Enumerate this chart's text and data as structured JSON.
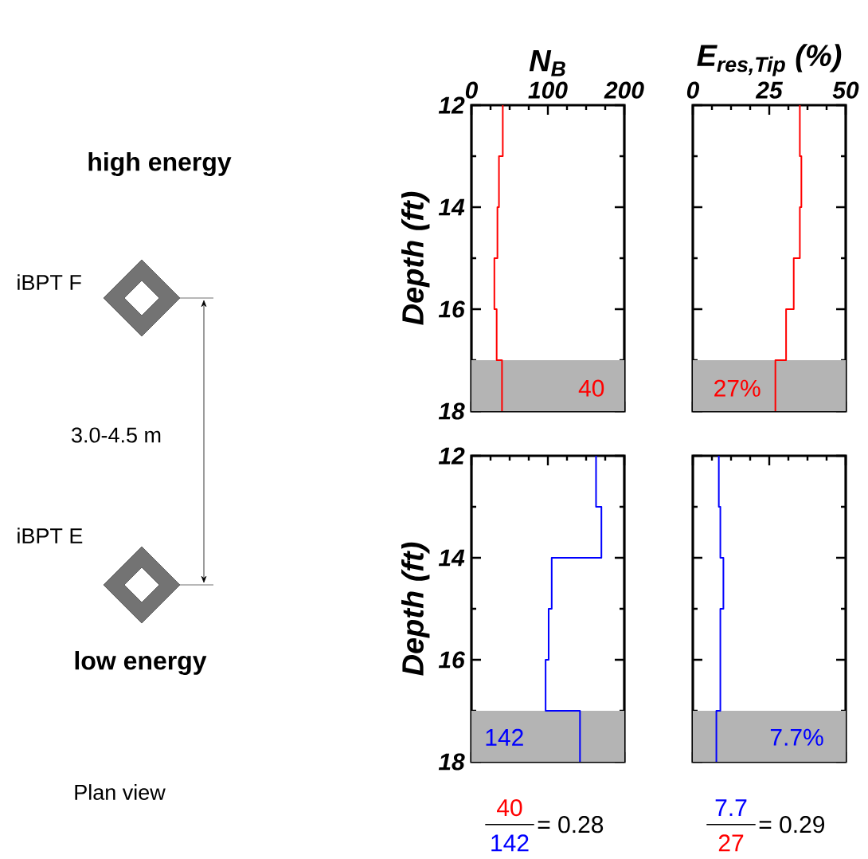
{
  "chart_data": [
    {
      "type": "other",
      "annotations": [
        "high energy",
        "iBPT  F",
        "3.0-4.5 m",
        "iBPT  E",
        "low energy",
        "Plan view"
      ]
    },
    {
      "type": "line",
      "xlabel": "N$_{B}$",
      "ylabel": "Depth (ft)",
      "xlim": [
        0,
        200
      ],
      "xticks": [
        0,
        100,
        200
      ],
      "ylim": [
        18,
        12
      ],
      "yticks": [
        12,
        14,
        16,
        18
      ],
      "series": [
        {
          "color": "#ff0000",
          "x": [
            41,
            41,
            36,
            36,
            34,
            34,
            30,
            30,
            33,
            33,
            40,
            40
          ],
          "values": [
            12,
            13,
            13,
            14,
            14,
            15,
            15,
            16,
            16,
            17,
            17,
            18
          ]
        }
      ],
      "bands": [
        {
          "axis": "y",
          "from": 17,
          "to": 18,
          "color": "#b4b4b4"
        }
      ],
      "annotations": [
        "40"
      ]
    },
    {
      "type": "line",
      "xlabel": "E$_{res,Tip}$ (%)",
      "xlim": [
        0,
        50
      ],
      "xticks": [
        0,
        25,
        50
      ],
      "ylim": [
        18,
        12
      ],
      "yticks": [
        12,
        14,
        16,
        18
      ],
      "tick_labels": "x",
      "series": [
        {
          "color": "#ff0000",
          "x": [
            35,
            35,
            35.5,
            35.5,
            35,
            35,
            33,
            33,
            30.5,
            30.5,
            27,
            27
          ],
          "values": [
            12,
            13,
            13,
            14,
            14,
            15,
            15,
            16,
            16,
            17,
            17,
            18
          ]
        }
      ],
      "bands": [
        {
          "axis": "y",
          "from": 17,
          "to": 18,
          "color": "#b4b4b4"
        }
      ],
      "annotations": [
        "27%"
      ]
    },
    {
      "type": "line",
      "ylabel": "Depth (ft)",
      "xlim": [
        0,
        200
      ],
      "xticks": [
        0,
        100,
        200
      ],
      "ylim": [
        18,
        12
      ],
      "yticks": [
        12,
        14,
        16,
        18
      ],
      "tick_labels": "y",
      "series": [
        {
          "color": "#0000ff",
          "x": [
            163,
            163,
            170,
            170,
            105,
            105,
            101,
            101,
            97,
            97,
            142,
            142
          ],
          "values": [
            12,
            13,
            13,
            14,
            14,
            15,
            15,
            16,
            16,
            17,
            17,
            18
          ]
        }
      ],
      "bands": [
        {
          "axis": "y",
          "from": 17,
          "to": 18,
          "color": "#b4b4b4"
        }
      ],
      "annotations": [
        "142",
        "40",
        "142",
        "= 0.28"
      ]
    },
    {
      "type": "line",
      "xlim": [
        0,
        50
      ],
      "xticks": [
        0,
        25,
        50
      ],
      "ylim": [
        18,
        12
      ],
      "yticks": [
        12,
        14,
        16,
        18
      ],
      "tick_labels": false,
      "series": [
        {
          "color": "#0000ff",
          "x": [
            8.5,
            8.5,
            9,
            9,
            10,
            10,
            9,
            9,
            9,
            9,
            7.7,
            7.7
          ],
          "values": [
            12,
            13,
            13,
            14,
            14,
            15,
            15,
            16,
            16,
            17,
            17,
            18
          ]
        }
      ],
      "bands": [
        {
          "axis": "y",
          "from": 17,
          "to": 18,
          "color": "#b4b4b4"
        }
      ],
      "annotations": [
        "7.7%",
        "7.7",
        "27",
        "= 0.29"
      ]
    }
  ]
}
